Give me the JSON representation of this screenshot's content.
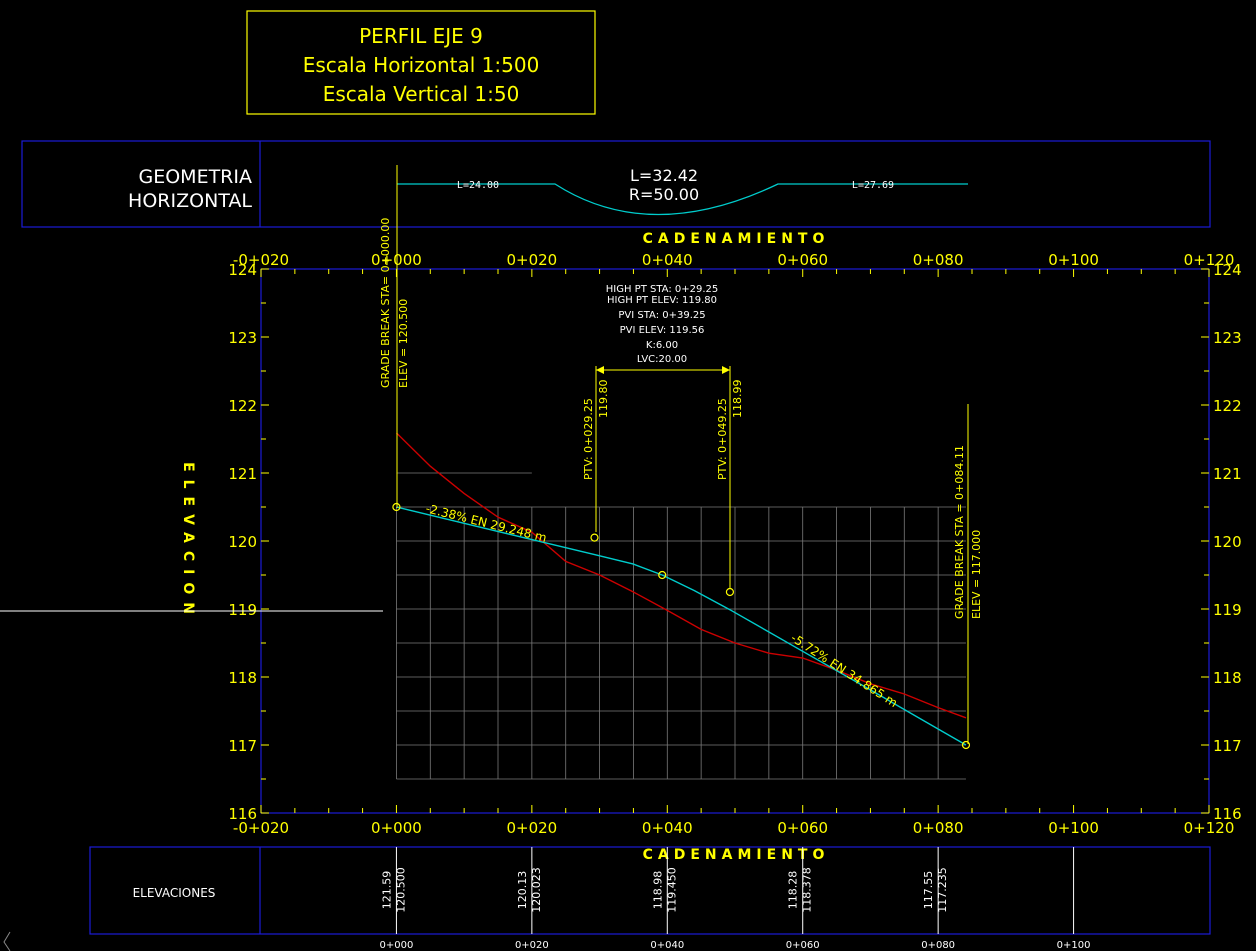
{
  "title_block": {
    "line1": "PERFIL EJE 9",
    "line2": "Escala Horizontal 1:500",
    "line3": "Escala Vertical 1:50"
  },
  "geometry_band": {
    "label_line1": "GEOMETRIA",
    "label_line2": "HORIZONTAL",
    "tangent1": "L=24.00",
    "curve_L": "L=32.42",
    "curve_R": "R=50.00",
    "tangent2": "L=27.69"
  },
  "axis_titles": {
    "x_top": "CADENAMIENTO",
    "x_bottom": "CADENAMIENTO",
    "y": "ELEVACION"
  },
  "annotations": {
    "grade_break_start_sta": "GRADE BREAK STA= 0+000.00",
    "grade_break_start_elev": "ELEV = 120.500",
    "grade_break_end_sta": "GRADE BREAK STA = 0+084.11",
    "grade_break_end_elev": "ELEV = 117.000",
    "vc_lines": [
      "HIGH PT STA: 0+29.25",
      "HIGH PT ELEV: 119.80",
      "PVI STA: 0+39.25",
      "PVI ELEV: 119.56",
      "K:6.00",
      "LVC:20.00"
    ],
    "pvc_sta": "PTV: 0+029.25",
    "pvc_elev": "119.80",
    "pvt_sta": "PTV: 0+049.25",
    "pvt_elev": "118.99",
    "grade1": "-2.38% EN 29.248 m",
    "grade2": "-5.72% EN 34.865 m"
  },
  "elevation_band": {
    "label": "ELEVACIONES",
    "columns": [
      {
        "sta": 0,
        "terrain": "121.59",
        "grade": "120.500"
      },
      {
        "sta": 20,
        "terrain": "120.13",
        "grade": "120.023"
      },
      {
        "sta": 40,
        "terrain": "118.98",
        "grade": "119.450"
      },
      {
        "sta": 60,
        "terrain": "118.28",
        "grade": "118.378"
      },
      {
        "sta": 80,
        "terrain": "117.55",
        "grade": "117.235"
      }
    ],
    "station_labels": [
      "0+000",
      "0+020",
      "0+040",
      "0+060",
      "0+080",
      "0+100"
    ]
  },
  "chart_data": {
    "type": "line",
    "title": "PERFIL EJE 9",
    "xlabel": "CADENAMIENTO",
    "ylabel": "ELEVACION",
    "xlim": [
      -20,
      120
    ],
    "ylim": [
      116,
      124
    ],
    "x_tick_labels": [
      "-0+020",
      "0+000",
      "0+020",
      "0+040",
      "0+060",
      "0+080",
      "0+100",
      "0+120"
    ],
    "y_tick_labels": [
      "116",
      "117",
      "118",
      "119",
      "120",
      "121",
      "122",
      "123",
      "124"
    ],
    "grid": true,
    "colors": {
      "terrain": "#cc0000",
      "grade": "#00cccc",
      "annotations": "#ffff00",
      "frame": "#1c1cd6"
    },
    "series": [
      {
        "key": "terrain",
        "x": [
          0,
          5,
          10,
          15,
          20,
          25,
          30,
          35,
          40,
          45,
          50,
          55,
          60,
          65,
          70,
          75,
          80,
          84.11
        ],
        "y": [
          121.59,
          121.1,
          120.7,
          120.35,
          120.13,
          119.7,
          119.5,
          119.25,
          118.98,
          118.7,
          118.5,
          118.35,
          118.28,
          118.1,
          117.9,
          117.75,
          117.55,
          117.4
        ]
      },
      {
        "key": "grade",
        "x": [
          0,
          10,
          20,
          29.25,
          35,
          39.25,
          44,
          49.25,
          60,
          70,
          80,
          84.11
        ],
        "y": [
          120.5,
          120.26,
          120.02,
          119.8,
          119.66,
          119.5,
          119.27,
          118.99,
          118.378,
          117.81,
          117.235,
          117.0
        ]
      }
    ],
    "points": [
      {
        "x": 0,
        "y": 120.5
      },
      {
        "x": 29.25,
        "y": 120.05
      },
      {
        "x": 39.25,
        "y": 119.5
      },
      {
        "x": 49.25,
        "y": 119.25
      },
      {
        "x": 84.11,
        "y": 117.0
      }
    ]
  }
}
